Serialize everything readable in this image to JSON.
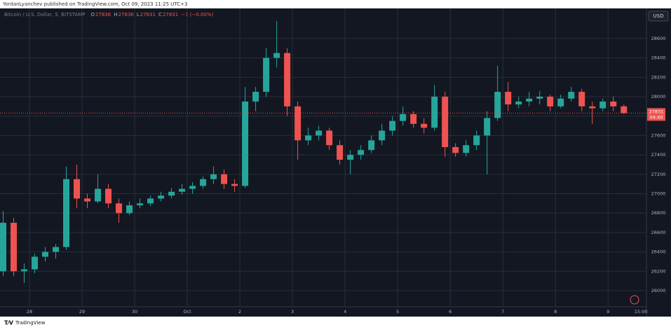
{
  "header": "YordanLyanchev published on TradingView.com, Oct 09, 2023 11:25 UTC+3",
  "footer": "TradingView",
  "chart_data": {
    "type": "candlestick",
    "symbol": "Bitcoin / U.S. Dollar, 5, BITSTAMP",
    "ohlc_legend": [
      {
        "label": "O",
        "value": "27836"
      },
      {
        "label": "H",
        "value": "27836"
      },
      {
        "label": "L",
        "value": "27831"
      },
      {
        "label": "C",
        "value": "27831"
      }
    ],
    "change": "−1 (−0.00%)",
    "currency": "USD",
    "last_price": 27831,
    "countdown": "04:40",
    "up_color": "#26a69a",
    "down_color": "#ef5350",
    "grid": true,
    "x": [
      27.5,
      27.7,
      27.9,
      28.1,
      28.3,
      28.5,
      28.7,
      28.9,
      29.1,
      29.3,
      29.5,
      29.7,
      29.9,
      30.1,
      30.3,
      30.5,
      30.7,
      30.9,
      31.1,
      31.3,
      31.5,
      31.7,
      31.9,
      32.1,
      32.3,
      32.5,
      32.7,
      32.9,
      33.1,
      33.3,
      33.5,
      33.7,
      33.9,
      34.1,
      34.3,
      34.5,
      34.7,
      34.9,
      35.1,
      35.3,
      35.5,
      35.7,
      35.9,
      36.1,
      36.3,
      36.5,
      36.7,
      36.9,
      37.1,
      37.3,
      37.5,
      37.7,
      37.9,
      38.1,
      38.3,
      38.5,
      38.7,
      38.9,
      39.1,
      39.3
    ],
    "open": [
      26200,
      26700,
      26200,
      26220,
      26350,
      26400,
      26450,
      27150,
      26950,
      26920,
      27050,
      26900,
      26800,
      26880,
      26900,
      26950,
      26980,
      27020,
      27050,
      27080,
      27150,
      27200,
      27100,
      27080,
      27950,
      28050,
      28400,
      28450,
      27900,
      27550,
      27600,
      27650,
      27500,
      27350,
      27400,
      27450,
      27550,
      27650,
      27750,
      27820,
      27720,
      27680,
      28000,
      27480,
      27420,
      27500,
      27600,
      27780,
      28050,
      27920,
      27950,
      27980,
      28000,
      27900,
      27980,
      28050,
      27900,
      27880,
      27950,
      27900
    ],
    "high": [
      26820,
      26750,
      26280,
      26380,
      26450,
      26480,
      27280,
      27300,
      27000,
      27200,
      27100,
      26950,
      26920,
      26950,
      26980,
      27020,
      27060,
      27100,
      27120,
      27180,
      27280,
      27250,
      27150,
      28100,
      28100,
      28500,
      28780,
      28500,
      27950,
      27680,
      27700,
      27680,
      27550,
      27450,
      27500,
      27600,
      27720,
      27800,
      27900,
      27850,
      27780,
      28120,
      28050,
      27520,
      27550,
      27650,
      27850,
      28320,
      28150,
      28000,
      28050,
      28060,
      28020,
      28020,
      28100,
      28080,
      27950,
      27980,
      28000,
      27920
    ],
    "low": [
      26150,
      26150,
      26080,
      26180,
      26300,
      26330,
      26420,
      26850,
      26850,
      26900,
      26850,
      26700,
      26780,
      26850,
      26870,
      26920,
      26950,
      26990,
      27000,
      27050,
      27100,
      27050,
      27020,
      27060,
      27850,
      28000,
      28300,
      27800,
      27350,
      27500,
      27550,
      27450,
      27300,
      27200,
      27350,
      27420,
      27500,
      27600,
      27700,
      27680,
      27620,
      27650,
      27380,
      27380,
      27380,
      27450,
      27200,
      27750,
      27850,
      27880,
      27900,
      27920,
      27850,
      27880,
      27950,
      27850,
      27720,
      27850,
      27850,
      27820
    ],
    "close": [
      26700,
      26200,
      26220,
      26350,
      26400,
      26450,
      27150,
      26950,
      26920,
      27050,
      26900,
      26800,
      26880,
      26900,
      26950,
      26980,
      27020,
      27050,
      27080,
      27150,
      27200,
      27100,
      27080,
      27950,
      28050,
      28400,
      28450,
      27900,
      27550,
      27600,
      27650,
      27500,
      27350,
      27400,
      27450,
      27550,
      27650,
      27750,
      27820,
      27720,
      27680,
      28000,
      27480,
      27420,
      27500,
      27600,
      27780,
      28050,
      27920,
      27950,
      27980,
      28000,
      27900,
      27980,
      28050,
      27900,
      27880,
      27950,
      27900,
      27831
    ],
    "xlim": [
      27.44,
      39.73
    ],
    "xticks": [
      {
        "value": 28,
        "label": "28"
      },
      {
        "value": 29,
        "label": "29"
      },
      {
        "value": 30,
        "label": "30"
      },
      {
        "value": 31,
        "label": "Oct"
      },
      {
        "value": 32,
        "label": "2"
      },
      {
        "value": 33,
        "label": "3"
      },
      {
        "value": 34,
        "label": "4"
      },
      {
        "value": 35,
        "label": "5"
      },
      {
        "value": 36,
        "label": "6"
      },
      {
        "value": 37,
        "label": "7"
      },
      {
        "value": 38,
        "label": "8"
      },
      {
        "value": 39,
        "label": "9"
      },
      {
        "value": 39.625,
        "label": "15:00"
      }
    ],
    "ylim": [
      25834,
      28910
    ],
    "yticks": [
      26000,
      26200,
      26400,
      26600,
      26800,
      27000,
      27200,
      27400,
      27600,
      27800,
      28000,
      28200,
      28400,
      28600
    ]
  }
}
